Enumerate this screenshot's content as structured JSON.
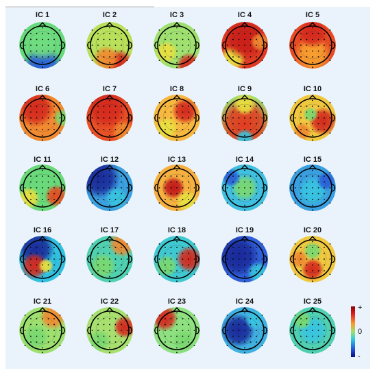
{
  "components": [
    {
      "label": "IC 1"
    },
    {
      "label": "IC 2"
    },
    {
      "label": "IC 3"
    },
    {
      "label": "IC 4"
    },
    {
      "label": "IC 5"
    },
    {
      "label": "IC 6"
    },
    {
      "label": "IC 7"
    },
    {
      "label": "IC 8"
    },
    {
      "label": "IC 9"
    },
    {
      "label": "IC 10"
    },
    {
      "label": "IC 11"
    },
    {
      "label": "IC 12"
    },
    {
      "label": "IC 13"
    },
    {
      "label": "IC 14"
    },
    {
      "label": "IC 15"
    },
    {
      "label": "IC 16"
    },
    {
      "label": "IC 17"
    },
    {
      "label": "IC 18"
    },
    {
      "label": "IC 19"
    },
    {
      "label": "IC 20"
    },
    {
      "label": "IC 21"
    },
    {
      "label": "IC 22"
    },
    {
      "label": "IC 23"
    },
    {
      "label": "IC 24"
    },
    {
      "label": "IC 25"
    }
  ],
  "colorbar": {
    "top": "+",
    "mid": "0",
    "bottom": "-"
  }
}
